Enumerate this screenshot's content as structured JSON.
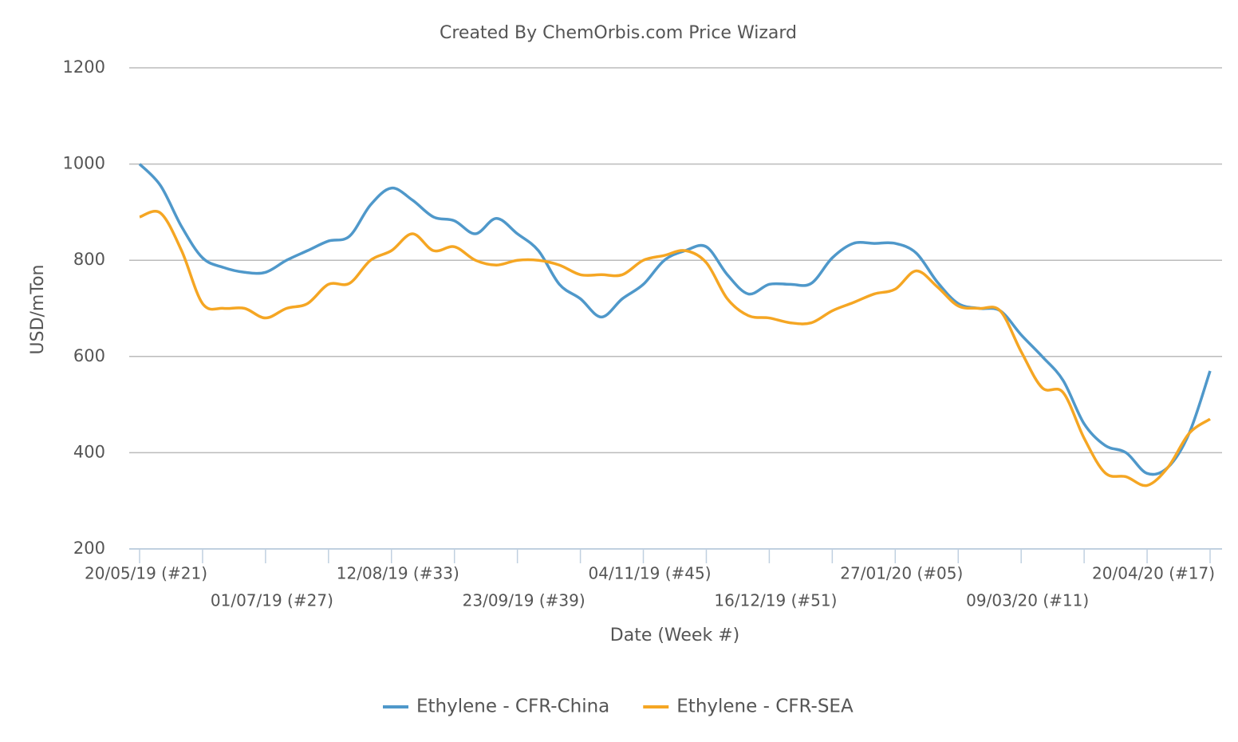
{
  "chart_data": {
    "type": "line",
    "title": "Created By ChemOrbis.com Price Wizard",
    "x_label": "Date (Week #)",
    "y_label": "USD/mTon",
    "categories": [
      "20/05/19 (#21)",
      null,
      null,
      null,
      null,
      null,
      "01/07/19 (#27)",
      null,
      null,
      null,
      null,
      null,
      "12/08/19 (#33)",
      null,
      null,
      null,
      null,
      null,
      "23/09/19 (#39)",
      null,
      null,
      null,
      null,
      null,
      "04/11/19 (#45)",
      null,
      null,
      null,
      null,
      null,
      "16/12/19 (#51)",
      null,
      null,
      null,
      null,
      null,
      "27/01/20 (#05)",
      null,
      null,
      null,
      null,
      null,
      "09/03/20 (#11)",
      null,
      null,
      null,
      null,
      null,
      "20/04/20 (#17)",
      null,
      null,
      null
    ],
    "series": [
      {
        "name": "Ethylene - CFR-China",
        "color": "#4f98ca",
        "values": [
          1000,
          955,
          870,
          805,
          785,
          775,
          775,
          800,
          820,
          840,
          850,
          915,
          950,
          925,
          890,
          882,
          855,
          887,
          855,
          820,
          750,
          720,
          682,
          720,
          750,
          800,
          820,
          828,
          770,
          730,
          750,
          750,
          752,
          805,
          835,
          835,
          835,
          815,
          755,
          710,
          700,
          695,
          645,
          600,
          550,
          460,
          415,
          400,
          357,
          370,
          440,
          570
        ]
      },
      {
        "name": "Ethylene - CFR-SEA",
        "color": "#f5a623",
        "values": [
          890,
          898,
          820,
          710,
          700,
          700,
          680,
          700,
          710,
          750,
          752,
          800,
          820,
          855,
          820,
          828,
          800,
          790,
          800,
          800,
          790,
          770,
          770,
          770,
          800,
          810,
          820,
          795,
          720,
          685,
          680,
          670,
          670,
          695,
          712,
          730,
          740,
          778,
          745,
          705,
          700,
          695,
          610,
          535,
          525,
          430,
          358,
          350,
          332,
          370,
          440,
          470
        ]
      }
    ],
    "ylim": [
      200,
      1200
    ],
    "yticks": [
      200,
      400,
      600,
      800,
      1000,
      1200
    ],
    "grid": true,
    "legend": "bottom"
  }
}
